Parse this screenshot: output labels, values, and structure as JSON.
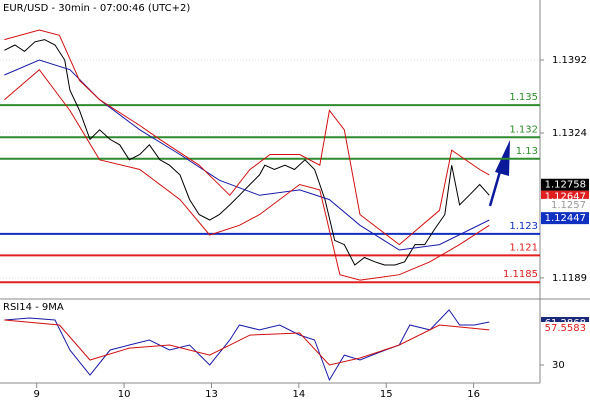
{
  "chart_data": [
    {
      "type": "line",
      "title": "EUR/USD - 30min - 07:00:46 (UTC+2)",
      "xlim": [
        -0.42,
        5.76
      ],
      "ylim": [
        1.11703,
        1.14479
      ],
      "yticks": [
        1.1392,
        1.1324,
        1.1189
      ],
      "grid": true,
      "series": [
        {
          "color": "#000000",
          "x": [
            -0.37,
            -0.25,
            -0.14,
            -0.02,
            0.09,
            0.21,
            0.32,
            0.38,
            0.49,
            0.61,
            0.72,
            0.84,
            0.95,
            1.06,
            1.18,
            1.29,
            1.41,
            1.52,
            1.64,
            1.75,
            1.86,
            1.98,
            2.09,
            2.21,
            2.32,
            2.44,
            2.55,
            2.61,
            2.72,
            2.84,
            2.95,
            3.07,
            3.18,
            3.3,
            3.41,
            3.52,
            3.64,
            3.75,
            3.87,
            3.98,
            4.1,
            4.21,
            4.33,
            4.44,
            4.55,
            4.67,
            4.75,
            4.84,
            4.95,
            5.07,
            5.18
          ],
          "values": [
            1.1401,
            1.1406,
            1.14,
            1.1409,
            1.1411,
            1.1406,
            1.1392,
            1.1364,
            1.1345,
            1.1318,
            1.1327,
            1.1318,
            1.1313,
            1.1299,
            1.1304,
            1.1313,
            1.1299,
            1.1294,
            1.1285,
            1.1262,
            1.1248,
            1.1243,
            1.1248,
            1.1257,
            1.1266,
            1.1276,
            1.1285,
            1.1294,
            1.129,
            1.1294,
            1.129,
            1.1299,
            1.129,
            1.1262,
            1.1224,
            1.122,
            1.1201,
            1.1208,
            1.1204,
            1.1201,
            1.1201,
            1.1204,
            1.122,
            1.122,
            1.1234,
            1.1248,
            1.1294,
            1.1257,
            1.1266,
            1.1276,
            1.1266
          ]
        },
        {
          "color": "#1a1aa8",
          "x": [
            -0.37,
            0.03,
            0.38,
            0.72,
            1.18,
            1.64,
            2.09,
            2.55,
            3.01,
            3.35,
            3.7,
            4.15,
            4.61,
            5.18
          ],
          "values": [
            1.1378,
            1.1392,
            1.1383,
            1.1355,
            1.1327,
            1.1304,
            1.128,
            1.1266,
            1.1271,
            1.1262,
            1.1238,
            1.1215,
            1.122,
            1.1243
          ]
        },
        {
          "color": "#d01010",
          "x": [
            -0.37,
            0.03,
            0.26,
            0.49,
            0.72,
            1.18,
            1.41,
            1.86,
            2.21,
            2.44,
            2.67,
            3.01,
            3.24,
            3.35,
            3.52,
            3.7,
            4.15,
            4.61,
            4.75,
            5.07,
            5.18
          ],
          "values": [
            1.1411,
            1.142,
            1.1415,
            1.1373,
            1.1355,
            1.1331,
            1.1318,
            1.1294,
            1.1266,
            1.129,
            1.1304,
            1.1304,
            1.1294,
            1.1345,
            1.1327,
            1.1248,
            1.122,
            1.1252,
            1.1308,
            1.129,
            1.1285
          ]
        },
        {
          "color": "#d01010",
          "x": [
            -0.37,
            0.03,
            0.38,
            0.72,
            1.18,
            1.64,
            1.98,
            2.32,
            2.55,
            3.01,
            3.24,
            3.47,
            3.7,
            4.15,
            4.5,
            4.84,
            5.18
          ],
          "values": [
            1.1355,
            1.1383,
            1.1345,
            1.1299,
            1.129,
            1.1262,
            1.1229,
            1.1238,
            1.1248,
            1.1276,
            1.1271,
            1.1192,
            1.1187,
            1.1192,
            1.1204,
            1.122,
            1.1238
          ]
        }
      ],
      "levels": [
        {
          "value": 1.135,
          "color": "#2e8b2e"
        },
        {
          "value": 1.132,
          "color": "#2e8b2e"
        },
        {
          "value": 1.13,
          "color": "#2e8b2e"
        },
        {
          "value": 1.123,
          "color": "#1030c0"
        },
        {
          "value": 1.121,
          "color": "#e02020"
        },
        {
          "value": 1.1185,
          "color": "#e02020"
        }
      ],
      "price_tags": [
        {
          "value": 1.12758,
          "bg": "#000000",
          "text_color": "#ffffff"
        },
        {
          "value": 1.12647,
          "bg": "#e02020",
          "text_color": "#ffffff"
        },
        {
          "value": 1.1257,
          "bg": "#ffffff",
          "text_color": "#999999"
        },
        {
          "value": 1.12447,
          "bg": "#1030c0",
          "text_color": "#ffffff"
        }
      ]
    },
    {
      "type": "line",
      "title": "RSI14 - 9MA",
      "xlim": [
        -0.42,
        5.76
      ],
      "ylim": [
        16.6,
        78.4
      ],
      "yticks": [
        30
      ],
      "xticks": [
        {
          "value": 0,
          "label": "9"
        },
        {
          "value": 1,
          "label": "10"
        },
        {
          "value": 2,
          "label": "13"
        },
        {
          "value": 3,
          "label": "14"
        },
        {
          "value": 4,
          "label": "15"
        },
        {
          "value": 5,
          "label": "16"
        }
      ],
      "series": [
        {
          "color": "#1a1aa8",
          "x": [
            -0.37,
            -0.08,
            0.21,
            0.38,
            0.61,
            0.84,
            1.06,
            1.29,
            1.52,
            1.75,
            1.98,
            2.21,
            2.32,
            2.55,
            2.78,
            3.01,
            3.18,
            3.35,
            3.52,
            3.7,
            3.93,
            4.15,
            4.27,
            4.5,
            4.72,
            4.84,
            5.01,
            5.18
          ],
          "values": [
            63.5,
            65.0,
            63.5,
            41.2,
            22.5,
            41.2,
            44.9,
            48.6,
            41.2,
            44.9,
            30.0,
            48.6,
            59.8,
            56.1,
            59.8,
            52.3,
            48.6,
            18.8,
            37.4,
            33.7,
            39.7,
            44.9,
            59.8,
            56.1,
            71.0,
            59.8,
            59.8,
            62.0
          ]
        },
        {
          "color": "#d01010",
          "x": [
            -0.37,
            0.26,
            0.61,
            1.06,
            1.52,
            1.98,
            2.44,
            3.01,
            3.35,
            3.7,
            4.15,
            4.61,
            5.18
          ],
          "values": [
            63.5,
            59.8,
            33.7,
            42.6,
            44.9,
            37.4,
            52.3,
            53.8,
            30.0,
            35.2,
            44.9,
            59.8,
            56.1
          ]
        }
      ],
      "price_tags": [
        {
          "value": 61.2868,
          "bg": "#1a2a78",
          "text_color": "#ffffff"
        },
        {
          "value": 57.5583,
          "bg": "#ffffff",
          "text_color": "#e02020"
        }
      ]
    }
  ]
}
